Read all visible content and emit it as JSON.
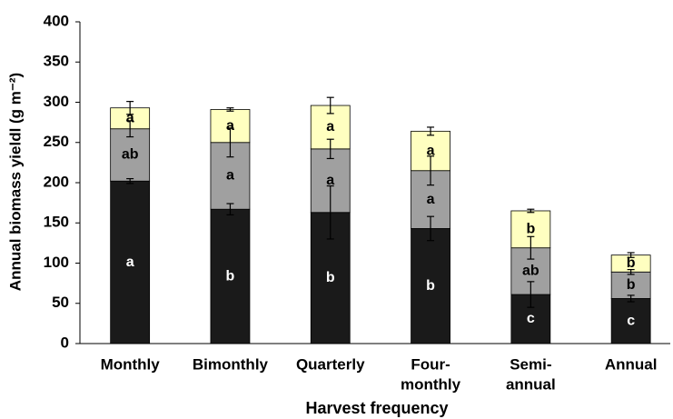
{
  "chart_data": {
    "type": "stacked_bar",
    "xlabel": "Harvest frequency",
    "ylabel": "Annual biomass yieldl (g m⁻²)",
    "categories": [
      "Monthly",
      "Bimonthly",
      "Quarterly",
      [
        "Four-",
        "monthly"
      ],
      [
        "Semi-",
        "annual"
      ],
      "Annual"
    ],
    "ylim": [
      0,
      400
    ],
    "yticks": [
      0,
      50,
      100,
      150,
      200,
      250,
      300,
      350,
      400
    ],
    "grid": false,
    "series": [
      {
        "color": "#1a1a1a",
        "text_color": "#ffffff",
        "values": [
          202,
          167,
          163,
          143,
          61,
          56
        ],
        "errors": [
          3,
          7,
          33,
          15,
          16,
          4
        ],
        "labels": [
          "a",
          "b",
          "b",
          "b",
          "c",
          "c"
        ]
      },
      {
        "color": "#a0a0a0",
        "text_color": "#000000",
        "values": [
          65,
          83,
          79,
          72,
          58,
          33
        ],
        "errors": [
          10,
          18,
          12,
          18,
          14,
          3
        ],
        "labels": [
          "ab",
          "a",
          "a",
          "a",
          "ab",
          "b"
        ]
      },
      {
        "color": "#ffffc0",
        "text_color": "#000000",
        "values": [
          26,
          41,
          54,
          49,
          46,
          21
        ],
        "errors": [
          8,
          2,
          10,
          5,
          2,
          3
        ],
        "labels": [
          "a",
          "a",
          "a",
          "a",
          "b",
          "b"
        ]
      }
    ]
  }
}
